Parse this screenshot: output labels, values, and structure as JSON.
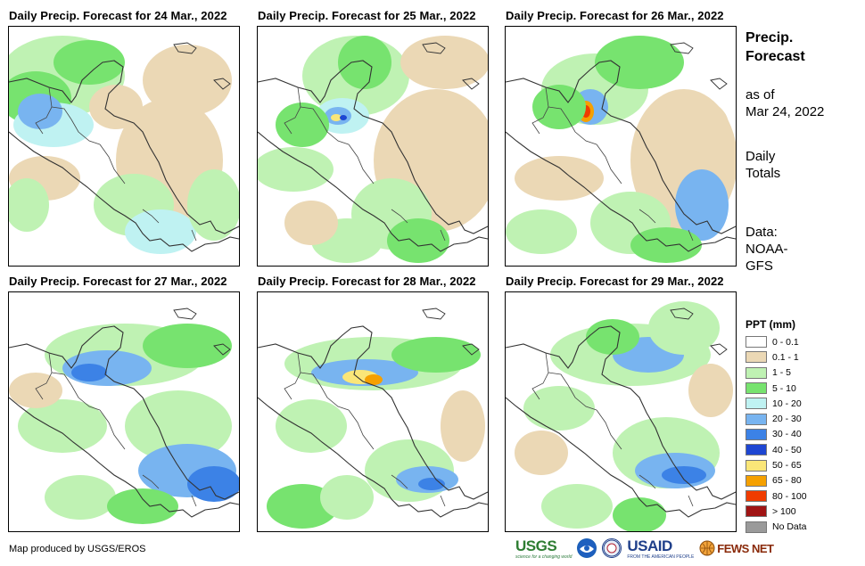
{
  "panels": [
    {
      "title": "Daily Precip. Forecast for 24 Mar., 2022"
    },
    {
      "title": "Daily Precip. Forecast for 25 Mar., 2022"
    },
    {
      "title": "Daily Precip. Forecast for 26 Mar., 2022"
    },
    {
      "title": "Daily Precip. Forecast for 27 Mar., 2022"
    },
    {
      "title": "Daily Precip. Forecast for 28 Mar., 2022"
    },
    {
      "title": "Daily Precip. Forecast for 29 Mar., 2022"
    }
  ],
  "sidebar": {
    "title_line1": "Precip.",
    "title_line2": "Forecast",
    "asof_line1": "as of",
    "asof_line2": "Mar 24, 2022",
    "daily_line1": "Daily",
    "daily_line2": "Totals",
    "data_line1": "Data:",
    "data_line2": "NOAA-",
    "data_line3": "GFS"
  },
  "legend": {
    "title": "PPT (mm)",
    "items": [
      {
        "label": "0 - 0.1",
        "color": "#ffffff"
      },
      {
        "label": "0.1 - 1",
        "color": "#ebd8b5"
      },
      {
        "label": "1 - 5",
        "color": "#bff2b3"
      },
      {
        "label": "5 - 10",
        "color": "#77e36f"
      },
      {
        "label": "10 - 20",
        "color": "#bff2f2"
      },
      {
        "label": "20 - 30",
        "color": "#78b4f0"
      },
      {
        "label": "30 - 40",
        "color": "#3c82e6"
      },
      {
        "label": "40 - 50",
        "color": "#1e46d2"
      },
      {
        "label": "50 - 65",
        "color": "#fae678"
      },
      {
        "label": "65 - 80",
        "color": "#f5a000"
      },
      {
        "label": "80 - 100",
        "color": "#f03c00"
      },
      {
        "label": "> 100",
        "color": "#a01414"
      },
      {
        "label": "No Data",
        "color": "#9a9a9a"
      }
    ]
  },
  "credit": "Map produced by USGS/EROS",
  "logos": {
    "usgs": "USGS",
    "usgs_tagline": "science for a changing world",
    "noaa": "NOAA",
    "usaid": "USAID",
    "usaid_tagline": "FROM THE AMERICAN PEOPLE",
    "fewsnet": "FEWS NET"
  }
}
